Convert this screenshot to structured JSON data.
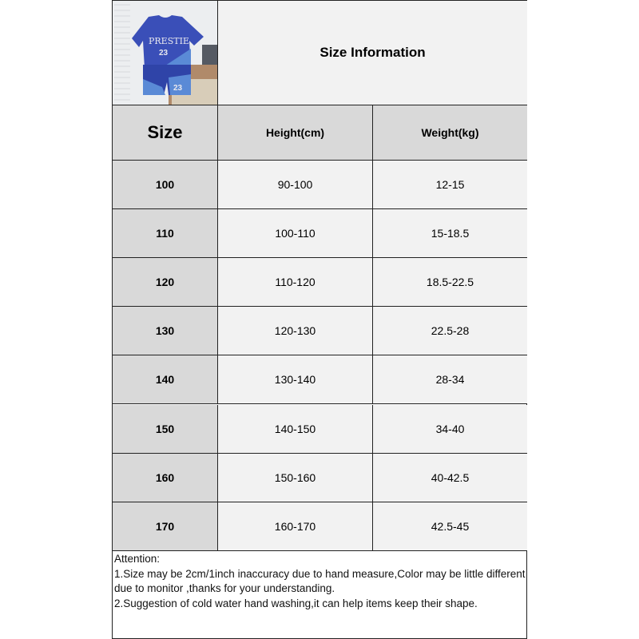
{
  "title": "Size Information",
  "product_image": {
    "alt": "blue t-shirt and shorts set",
    "print_text": "PRESTIE",
    "number": "23"
  },
  "headers": [
    "Size",
    "Height(cm)",
    "Weight(kg)"
  ],
  "rows": [
    [
      "100",
      "90-100",
      "12-15"
    ],
    [
      "110",
      "100-110",
      "15-18.5"
    ],
    [
      "120",
      "110-120",
      "18.5-22.5"
    ],
    [
      "130",
      "120-130",
      "22.5-28"
    ],
    [
      "140",
      "130-140",
      "28-34"
    ],
    [
      "150",
      "140-150",
      "34-40"
    ],
    [
      "160",
      "150-160",
      "40-42.5"
    ],
    [
      "170",
      "160-170",
      "42.5-45"
    ]
  ],
  "notes": [
    "Attention:",
    "1.Size may be 2cm/1inch inaccuracy due to hand measure,Color may be little different due to monitor ,thanks for your understanding.",
    "2.Suggestion of cold water hand washing,it can help items keep their shape."
  ],
  "colors": {
    "header_bg": "#d9d9d9",
    "cell_bg": "#f2f2f2",
    "border": "#222222",
    "garment": "#3a4fb8"
  }
}
